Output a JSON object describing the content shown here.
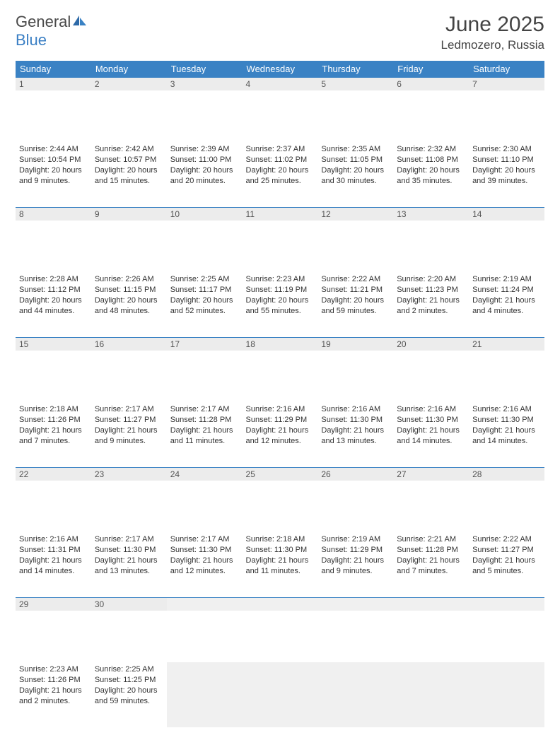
{
  "logo": {
    "general": "General",
    "blue": "Blue"
  },
  "title": "June 2025",
  "location": "Ledmozero, Russia",
  "colors": {
    "header_bg": "#3a82c4",
    "header_text": "#ffffff",
    "daynum_bg": "#ececec",
    "daynum_border": "#3a82c4",
    "empty_bg": "#f0f0f0",
    "text": "#333333",
    "logo_gray": "#4a4a4a",
    "logo_blue": "#3a7fc4"
  },
  "weekdays": [
    "Sunday",
    "Monday",
    "Tuesday",
    "Wednesday",
    "Thursday",
    "Friday",
    "Saturday"
  ],
  "weeks": [
    [
      {
        "day": "1",
        "sunrise": "Sunrise: 2:44 AM",
        "sunset": "Sunset: 10:54 PM",
        "daylight1": "Daylight: 20 hours",
        "daylight2": "and 9 minutes."
      },
      {
        "day": "2",
        "sunrise": "Sunrise: 2:42 AM",
        "sunset": "Sunset: 10:57 PM",
        "daylight1": "Daylight: 20 hours",
        "daylight2": "and 15 minutes."
      },
      {
        "day": "3",
        "sunrise": "Sunrise: 2:39 AM",
        "sunset": "Sunset: 11:00 PM",
        "daylight1": "Daylight: 20 hours",
        "daylight2": "and 20 minutes."
      },
      {
        "day": "4",
        "sunrise": "Sunrise: 2:37 AM",
        "sunset": "Sunset: 11:02 PM",
        "daylight1": "Daylight: 20 hours",
        "daylight2": "and 25 minutes."
      },
      {
        "day": "5",
        "sunrise": "Sunrise: 2:35 AM",
        "sunset": "Sunset: 11:05 PM",
        "daylight1": "Daylight: 20 hours",
        "daylight2": "and 30 minutes."
      },
      {
        "day": "6",
        "sunrise": "Sunrise: 2:32 AM",
        "sunset": "Sunset: 11:08 PM",
        "daylight1": "Daylight: 20 hours",
        "daylight2": "and 35 minutes."
      },
      {
        "day": "7",
        "sunrise": "Sunrise: 2:30 AM",
        "sunset": "Sunset: 11:10 PM",
        "daylight1": "Daylight: 20 hours",
        "daylight2": "and 39 minutes."
      }
    ],
    [
      {
        "day": "8",
        "sunrise": "Sunrise: 2:28 AM",
        "sunset": "Sunset: 11:12 PM",
        "daylight1": "Daylight: 20 hours",
        "daylight2": "and 44 minutes."
      },
      {
        "day": "9",
        "sunrise": "Sunrise: 2:26 AM",
        "sunset": "Sunset: 11:15 PM",
        "daylight1": "Daylight: 20 hours",
        "daylight2": "and 48 minutes."
      },
      {
        "day": "10",
        "sunrise": "Sunrise: 2:25 AM",
        "sunset": "Sunset: 11:17 PM",
        "daylight1": "Daylight: 20 hours",
        "daylight2": "and 52 minutes."
      },
      {
        "day": "11",
        "sunrise": "Sunrise: 2:23 AM",
        "sunset": "Sunset: 11:19 PM",
        "daylight1": "Daylight: 20 hours",
        "daylight2": "and 55 minutes."
      },
      {
        "day": "12",
        "sunrise": "Sunrise: 2:22 AM",
        "sunset": "Sunset: 11:21 PM",
        "daylight1": "Daylight: 20 hours",
        "daylight2": "and 59 minutes."
      },
      {
        "day": "13",
        "sunrise": "Sunrise: 2:20 AM",
        "sunset": "Sunset: 11:23 PM",
        "daylight1": "Daylight: 21 hours",
        "daylight2": "and 2 minutes."
      },
      {
        "day": "14",
        "sunrise": "Sunrise: 2:19 AM",
        "sunset": "Sunset: 11:24 PM",
        "daylight1": "Daylight: 21 hours",
        "daylight2": "and 4 minutes."
      }
    ],
    [
      {
        "day": "15",
        "sunrise": "Sunrise: 2:18 AM",
        "sunset": "Sunset: 11:26 PM",
        "daylight1": "Daylight: 21 hours",
        "daylight2": "and 7 minutes."
      },
      {
        "day": "16",
        "sunrise": "Sunrise: 2:17 AM",
        "sunset": "Sunset: 11:27 PM",
        "daylight1": "Daylight: 21 hours",
        "daylight2": "and 9 minutes."
      },
      {
        "day": "17",
        "sunrise": "Sunrise: 2:17 AM",
        "sunset": "Sunset: 11:28 PM",
        "daylight1": "Daylight: 21 hours",
        "daylight2": "and 11 minutes."
      },
      {
        "day": "18",
        "sunrise": "Sunrise: 2:16 AM",
        "sunset": "Sunset: 11:29 PM",
        "daylight1": "Daylight: 21 hours",
        "daylight2": "and 12 minutes."
      },
      {
        "day": "19",
        "sunrise": "Sunrise: 2:16 AM",
        "sunset": "Sunset: 11:30 PM",
        "daylight1": "Daylight: 21 hours",
        "daylight2": "and 13 minutes."
      },
      {
        "day": "20",
        "sunrise": "Sunrise: 2:16 AM",
        "sunset": "Sunset: 11:30 PM",
        "daylight1": "Daylight: 21 hours",
        "daylight2": "and 14 minutes."
      },
      {
        "day": "21",
        "sunrise": "Sunrise: 2:16 AM",
        "sunset": "Sunset: 11:30 PM",
        "daylight1": "Daylight: 21 hours",
        "daylight2": "and 14 minutes."
      }
    ],
    [
      {
        "day": "22",
        "sunrise": "Sunrise: 2:16 AM",
        "sunset": "Sunset: 11:31 PM",
        "daylight1": "Daylight: 21 hours",
        "daylight2": "and 14 minutes."
      },
      {
        "day": "23",
        "sunrise": "Sunrise: 2:17 AM",
        "sunset": "Sunset: 11:30 PM",
        "daylight1": "Daylight: 21 hours",
        "daylight2": "and 13 minutes."
      },
      {
        "day": "24",
        "sunrise": "Sunrise: 2:17 AM",
        "sunset": "Sunset: 11:30 PM",
        "daylight1": "Daylight: 21 hours",
        "daylight2": "and 12 minutes."
      },
      {
        "day": "25",
        "sunrise": "Sunrise: 2:18 AM",
        "sunset": "Sunset: 11:30 PM",
        "daylight1": "Daylight: 21 hours",
        "daylight2": "and 11 minutes."
      },
      {
        "day": "26",
        "sunrise": "Sunrise: 2:19 AM",
        "sunset": "Sunset: 11:29 PM",
        "daylight1": "Daylight: 21 hours",
        "daylight2": "and 9 minutes."
      },
      {
        "day": "27",
        "sunrise": "Sunrise: 2:21 AM",
        "sunset": "Sunset: 11:28 PM",
        "daylight1": "Daylight: 21 hours",
        "daylight2": "and 7 minutes."
      },
      {
        "day": "28",
        "sunrise": "Sunrise: 2:22 AM",
        "sunset": "Sunset: 11:27 PM",
        "daylight1": "Daylight: 21 hours",
        "daylight2": "and 5 minutes."
      }
    ],
    [
      {
        "day": "29",
        "sunrise": "Sunrise: 2:23 AM",
        "sunset": "Sunset: 11:26 PM",
        "daylight1": "Daylight: 21 hours",
        "daylight2": "and 2 minutes."
      },
      {
        "day": "30",
        "sunrise": "Sunrise: 2:25 AM",
        "sunset": "Sunset: 11:25 PM",
        "daylight1": "Daylight: 20 hours",
        "daylight2": "and 59 minutes."
      },
      null,
      null,
      null,
      null,
      null
    ]
  ]
}
